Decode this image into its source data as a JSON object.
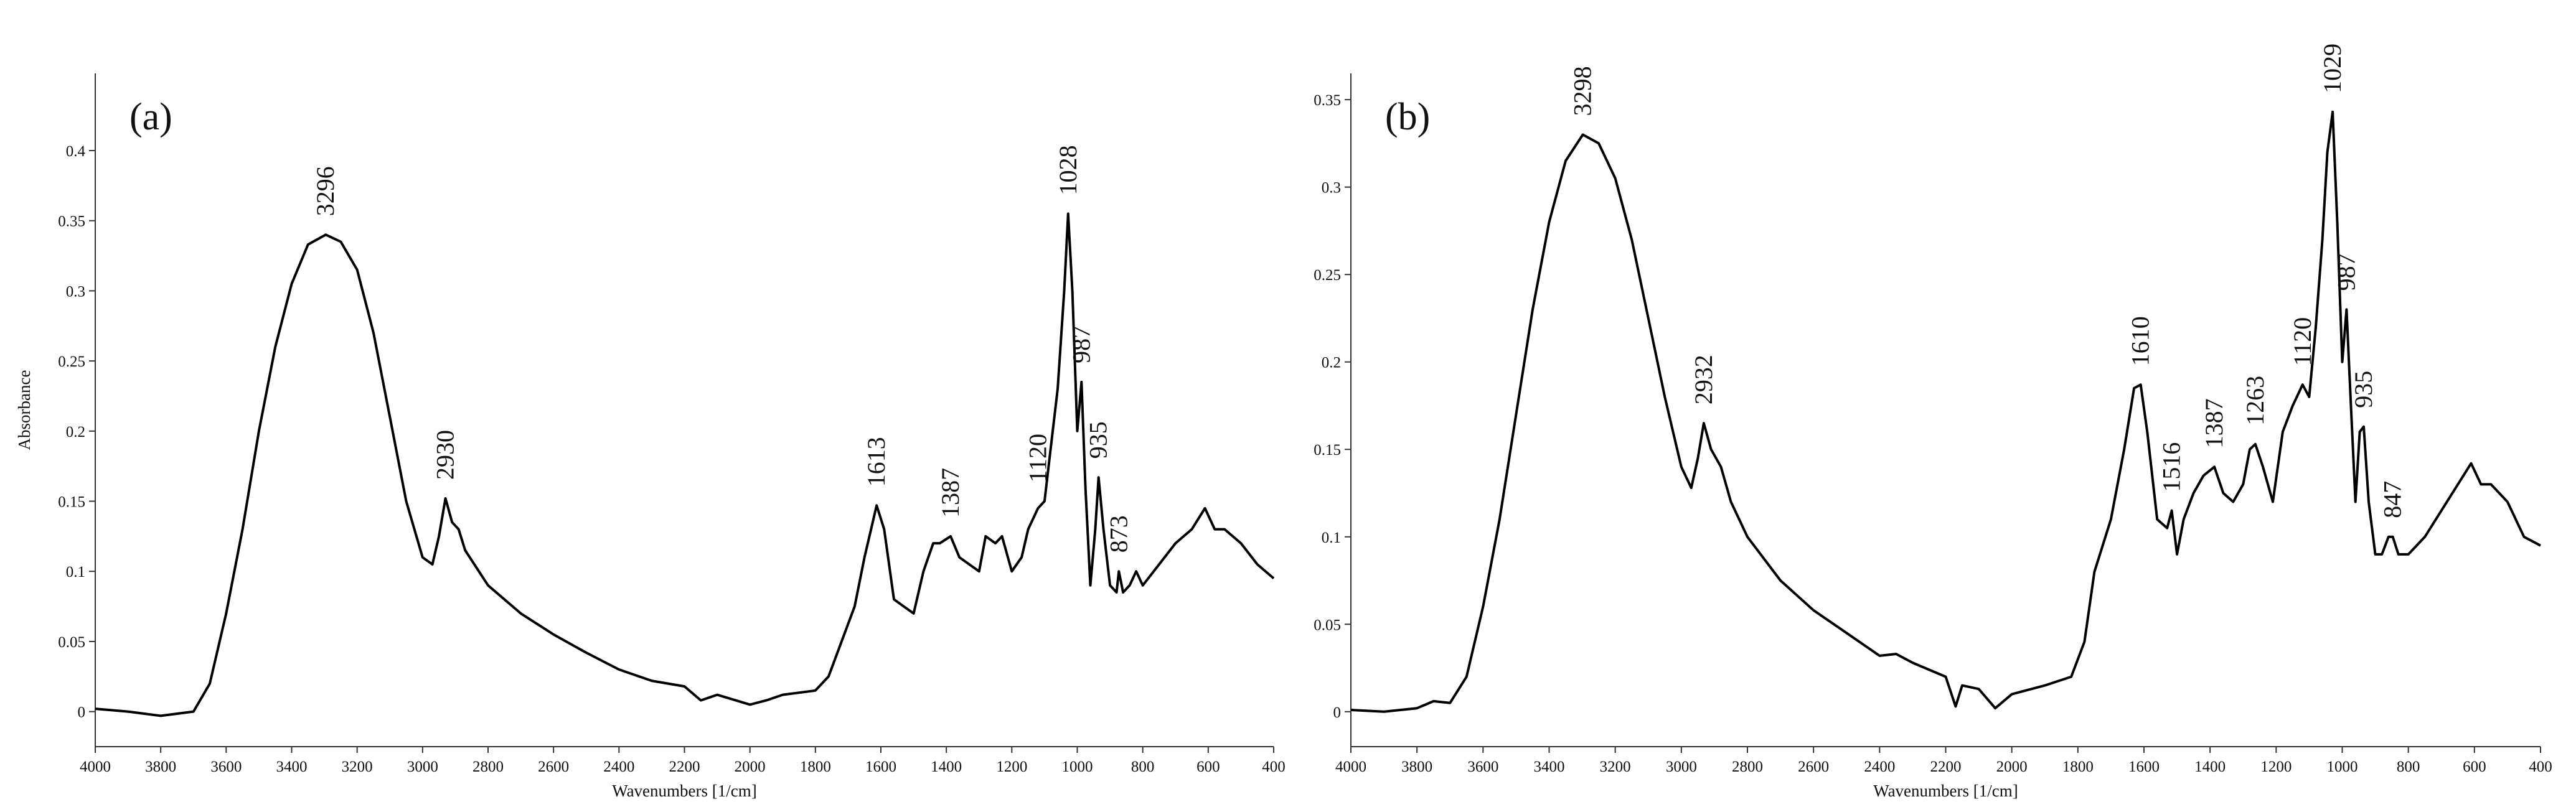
{
  "chart_data": [
    {
      "type": "line",
      "panel_label": "(a)",
      "x_label": "Wavenumbers [1/cm]",
      "y_label": "Absorbance",
      "color": "#000000",
      "xlim": [
        4000,
        400
      ],
      "xticks": [
        4000,
        3800,
        3600,
        3400,
        3200,
        3000,
        2800,
        2600,
        2400,
        2200,
        2000,
        1800,
        1600,
        1400,
        1200,
        1000,
        800,
        600,
        400
      ],
      "ylim": [
        -0.025,
        0.455
      ],
      "yticks": [
        0,
        0.05,
        0.1,
        0.15,
        0.2,
        0.25,
        0.3,
        0.35,
        0.4
      ],
      "x": [
        4000,
        3900,
        3800,
        3700,
        3650,
        3600,
        3550,
        3500,
        3450,
        3400,
        3350,
        3296,
        3250,
        3200,
        3150,
        3100,
        3050,
        3000,
        2970,
        2950,
        2930,
        2910,
        2890,
        2870,
        2800,
        2700,
        2600,
        2500,
        2400,
        2300,
        2200,
        2150,
        2100,
        2000,
        1950,
        1900,
        1800,
        1760,
        1720,
        1680,
        1650,
        1613,
        1590,
        1560,
        1530,
        1500,
        1470,
        1440,
        1420,
        1387,
        1360,
        1330,
        1300,
        1280,
        1250,
        1230,
        1200,
        1170,
        1150,
        1120,
        1100,
        1080,
        1060,
        1040,
        1028,
        1015,
        1000,
        987,
        975,
        960,
        945,
        935,
        920,
        900,
        880,
        873,
        860,
        840,
        820,
        800,
        750,
        700,
        650,
        610,
        580,
        550,
        500,
        450,
        400
      ],
      "values": [
        0.002,
        0.0,
        -0.003,
        0.0,
        0.02,
        0.07,
        0.13,
        0.2,
        0.26,
        0.305,
        0.333,
        0.34,
        0.335,
        0.315,
        0.27,
        0.21,
        0.15,
        0.11,
        0.105,
        0.125,
        0.152,
        0.135,
        0.13,
        0.115,
        0.09,
        0.07,
        0.055,
        0.042,
        0.03,
        0.022,
        0.018,
        0.008,
        0.012,
        0.005,
        0.008,
        0.012,
        0.015,
        0.025,
        0.05,
        0.075,
        0.11,
        0.147,
        0.13,
        0.08,
        0.075,
        0.07,
        0.1,
        0.12,
        0.12,
        0.125,
        0.11,
        0.105,
        0.1,
        0.125,
        0.12,
        0.125,
        0.1,
        0.11,
        0.13,
        0.145,
        0.15,
        0.19,
        0.23,
        0.3,
        0.355,
        0.3,
        0.2,
        0.235,
        0.16,
        0.09,
        0.13,
        0.167,
        0.13,
        0.09,
        0.085,
        0.1,
        0.085,
        0.09,
        0.1,
        0.09,
        0.105,
        0.12,
        0.13,
        0.145,
        0.13,
        0.13,
        0.12,
        0.105,
        0.095
      ],
      "annotations": [
        {
          "x": 3296,
          "y": 0.34
        },
        {
          "x": 2930,
          "y": 0.152
        },
        {
          "x": 1613,
          "y": 0.147
        },
        {
          "x": 1387,
          "y": 0.125
        },
        {
          "x": 1120,
          "y": 0.15
        },
        {
          "x": 1028,
          "y": 0.355
        },
        {
          "x": 987,
          "y": 0.235
        },
        {
          "x": 935,
          "y": 0.167
        },
        {
          "x": 873,
          "y": 0.1
        }
      ]
    },
    {
      "type": "line",
      "panel_label": "(b)",
      "x_label": "Wavenumbers [1/cm]",
      "color": "#000000",
      "xlim": [
        4000,
        400
      ],
      "xticks": [
        4000,
        3800,
        3600,
        3400,
        3200,
        3000,
        2800,
        2600,
        2400,
        2200,
        2000,
        1800,
        1600,
        1400,
        1200,
        1000,
        800,
        600,
        400
      ],
      "ylim": [
        -0.02,
        0.365
      ],
      "yticks": [
        0,
        0.05,
        0.1,
        0.15,
        0.2,
        0.25,
        0.3,
        0.35
      ],
      "x": [
        4000,
        3900,
        3800,
        3750,
        3700,
        3650,
        3600,
        3550,
        3500,
        3450,
        3400,
        3350,
        3298,
        3250,
        3200,
        3150,
        3100,
        3050,
        3000,
        2970,
        2950,
        2932,
        2910,
        2880,
        2850,
        2800,
        2700,
        2600,
        2500,
        2400,
        2350,
        2300,
        2200,
        2170,
        2150,
        2100,
        2050,
        2000,
        1900,
        1820,
        1780,
        1750,
        1700,
        1660,
        1630,
        1610,
        1590,
        1560,
        1530,
        1516,
        1500,
        1480,
        1450,
        1420,
        1387,
        1360,
        1330,
        1300,
        1280,
        1263,
        1240,
        1210,
        1180,
        1150,
        1120,
        1100,
        1080,
        1060,
        1045,
        1029,
        1015,
        1000,
        987,
        975,
        960,
        947,
        935,
        920,
        900,
        880,
        860,
        847,
        830,
        800,
        750,
        700,
        650,
        610,
        580,
        550,
        500,
        450,
        400
      ],
      "values": [
        0.001,
        0.0,
        0.002,
        0.006,
        0.005,
        0.02,
        0.06,
        0.11,
        0.17,
        0.23,
        0.28,
        0.315,
        0.33,
        0.325,
        0.305,
        0.27,
        0.225,
        0.18,
        0.14,
        0.128,
        0.145,
        0.165,
        0.15,
        0.14,
        0.12,
        0.1,
        0.075,
        0.058,
        0.045,
        0.032,
        0.033,
        0.028,
        0.02,
        0.003,
        0.015,
        0.013,
        0.002,
        0.01,
        0.015,
        0.02,
        0.04,
        0.08,
        0.11,
        0.15,
        0.185,
        0.187,
        0.16,
        0.11,
        0.105,
        0.115,
        0.09,
        0.11,
        0.125,
        0.135,
        0.14,
        0.125,
        0.12,
        0.13,
        0.15,
        0.153,
        0.14,
        0.12,
        0.16,
        0.175,
        0.187,
        0.18,
        0.22,
        0.27,
        0.32,
        0.343,
        0.28,
        0.2,
        0.23,
        0.18,
        0.12,
        0.16,
        0.163,
        0.12,
        0.09,
        0.09,
        0.1,
        0.1,
        0.09,
        0.09,
        0.1,
        0.115,
        0.13,
        0.142,
        0.13,
        0.13,
        0.12,
        0.1,
        0.095
      ],
      "annotations": [
        {
          "x": 3298,
          "y": 0.33
        },
        {
          "x": 2932,
          "y": 0.165
        },
        {
          "x": 1610,
          "y": 0.187
        },
        {
          "x": 1516,
          "y": 0.115
        },
        {
          "x": 1387,
          "y": 0.14
        },
        {
          "x": 1263,
          "y": 0.153
        },
        {
          "x": 1120,
          "y": 0.187
        },
        {
          "x": 1029,
          "y": 0.343
        },
        {
          "x": 987,
          "y": 0.23
        },
        {
          "x": 935,
          "y": 0.163
        },
        {
          "x": 847,
          "y": 0.1
        }
      ]
    }
  ]
}
